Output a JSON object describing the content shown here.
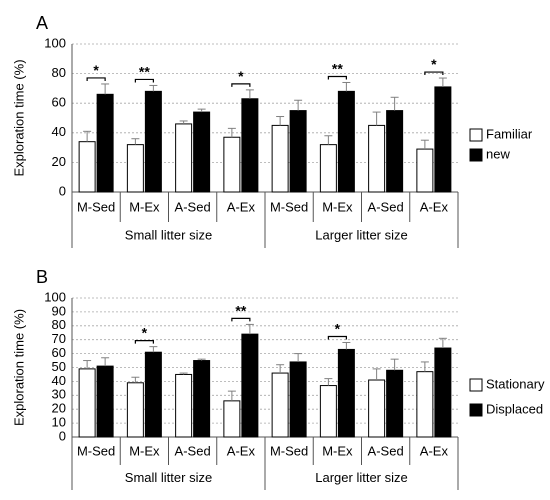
{
  "chart_data": [
    {
      "type": "bar",
      "panel_label": "A",
      "ylabel": "Exploration time (%)",
      "ylim": [
        0,
        100
      ],
      "yticks": [
        0,
        20,
        40,
        60,
        80,
        100
      ],
      "grid": true,
      "categories": [
        "M-Sed",
        "M-Ex",
        "A-Sed",
        "A-Ex",
        "M-Sed",
        "M-Ex",
        "A-Sed",
        "A-Ex"
      ],
      "groups": [
        {
          "label": "Small litter size",
          "count": 4
        },
        {
          "label": "Larger litter size",
          "count": 4
        }
      ],
      "legend_position": "right",
      "series": [
        {
          "name": "Familiar",
          "color": "#ffffff",
          "values": [
            34,
            32,
            46,
            37,
            45,
            32,
            45,
            29
          ],
          "errors": [
            7,
            4,
            2,
            6,
            6,
            6,
            9,
            6
          ]
        },
        {
          "name": "new",
          "color": "#000000",
          "values": [
            66,
            68,
            54,
            63,
            55,
            68,
            55,
            71
          ],
          "errors": [
            7,
            4,
            2,
            6,
            7,
            6,
            9,
            6
          ]
        }
      ],
      "annotations": [
        {
          "index": 0,
          "text": "*"
        },
        {
          "index": 1,
          "text": "**"
        },
        {
          "index": 3,
          "text": "*"
        },
        {
          "index": 5,
          "text": "**"
        },
        {
          "index": 7,
          "text": "*"
        }
      ]
    },
    {
      "type": "bar",
      "panel_label": "B",
      "ylabel": "Exploration time (%)",
      "ylim": [
        0,
        100
      ],
      "yticks": [
        0,
        10,
        20,
        30,
        40,
        50,
        60,
        70,
        80,
        90,
        100
      ],
      "grid": true,
      "categories": [
        "M-Sed",
        "M-Ex",
        "A-Sed",
        "A-Ex",
        "M-Sed",
        "M-Ex",
        "A-Sed",
        "A-Ex"
      ],
      "groups": [
        {
          "label": "Small litter size",
          "count": 4
        },
        {
          "label": "Larger litter size",
          "count": 4
        }
      ],
      "legend_position": "right",
      "series": [
        {
          "name": "Stationary",
          "color": "#ffffff",
          "values": [
            49,
            39,
            45,
            26,
            46,
            37,
            41,
            47
          ],
          "errors": [
            6,
            4,
            1,
            7,
            6,
            5,
            8,
            7
          ]
        },
        {
          "name": "Displaced",
          "color": "#000000",
          "values": [
            51,
            61,
            55,
            74,
            54,
            63,
            48,
            64
          ],
          "errors": [
            6,
            4,
            1,
            7,
            6,
            5,
            8,
            7
          ]
        }
      ],
      "annotations": [
        {
          "index": 1,
          "text": "*"
        },
        {
          "index": 3,
          "text": "**"
        },
        {
          "index": 5,
          "text": "*"
        }
      ]
    }
  ]
}
